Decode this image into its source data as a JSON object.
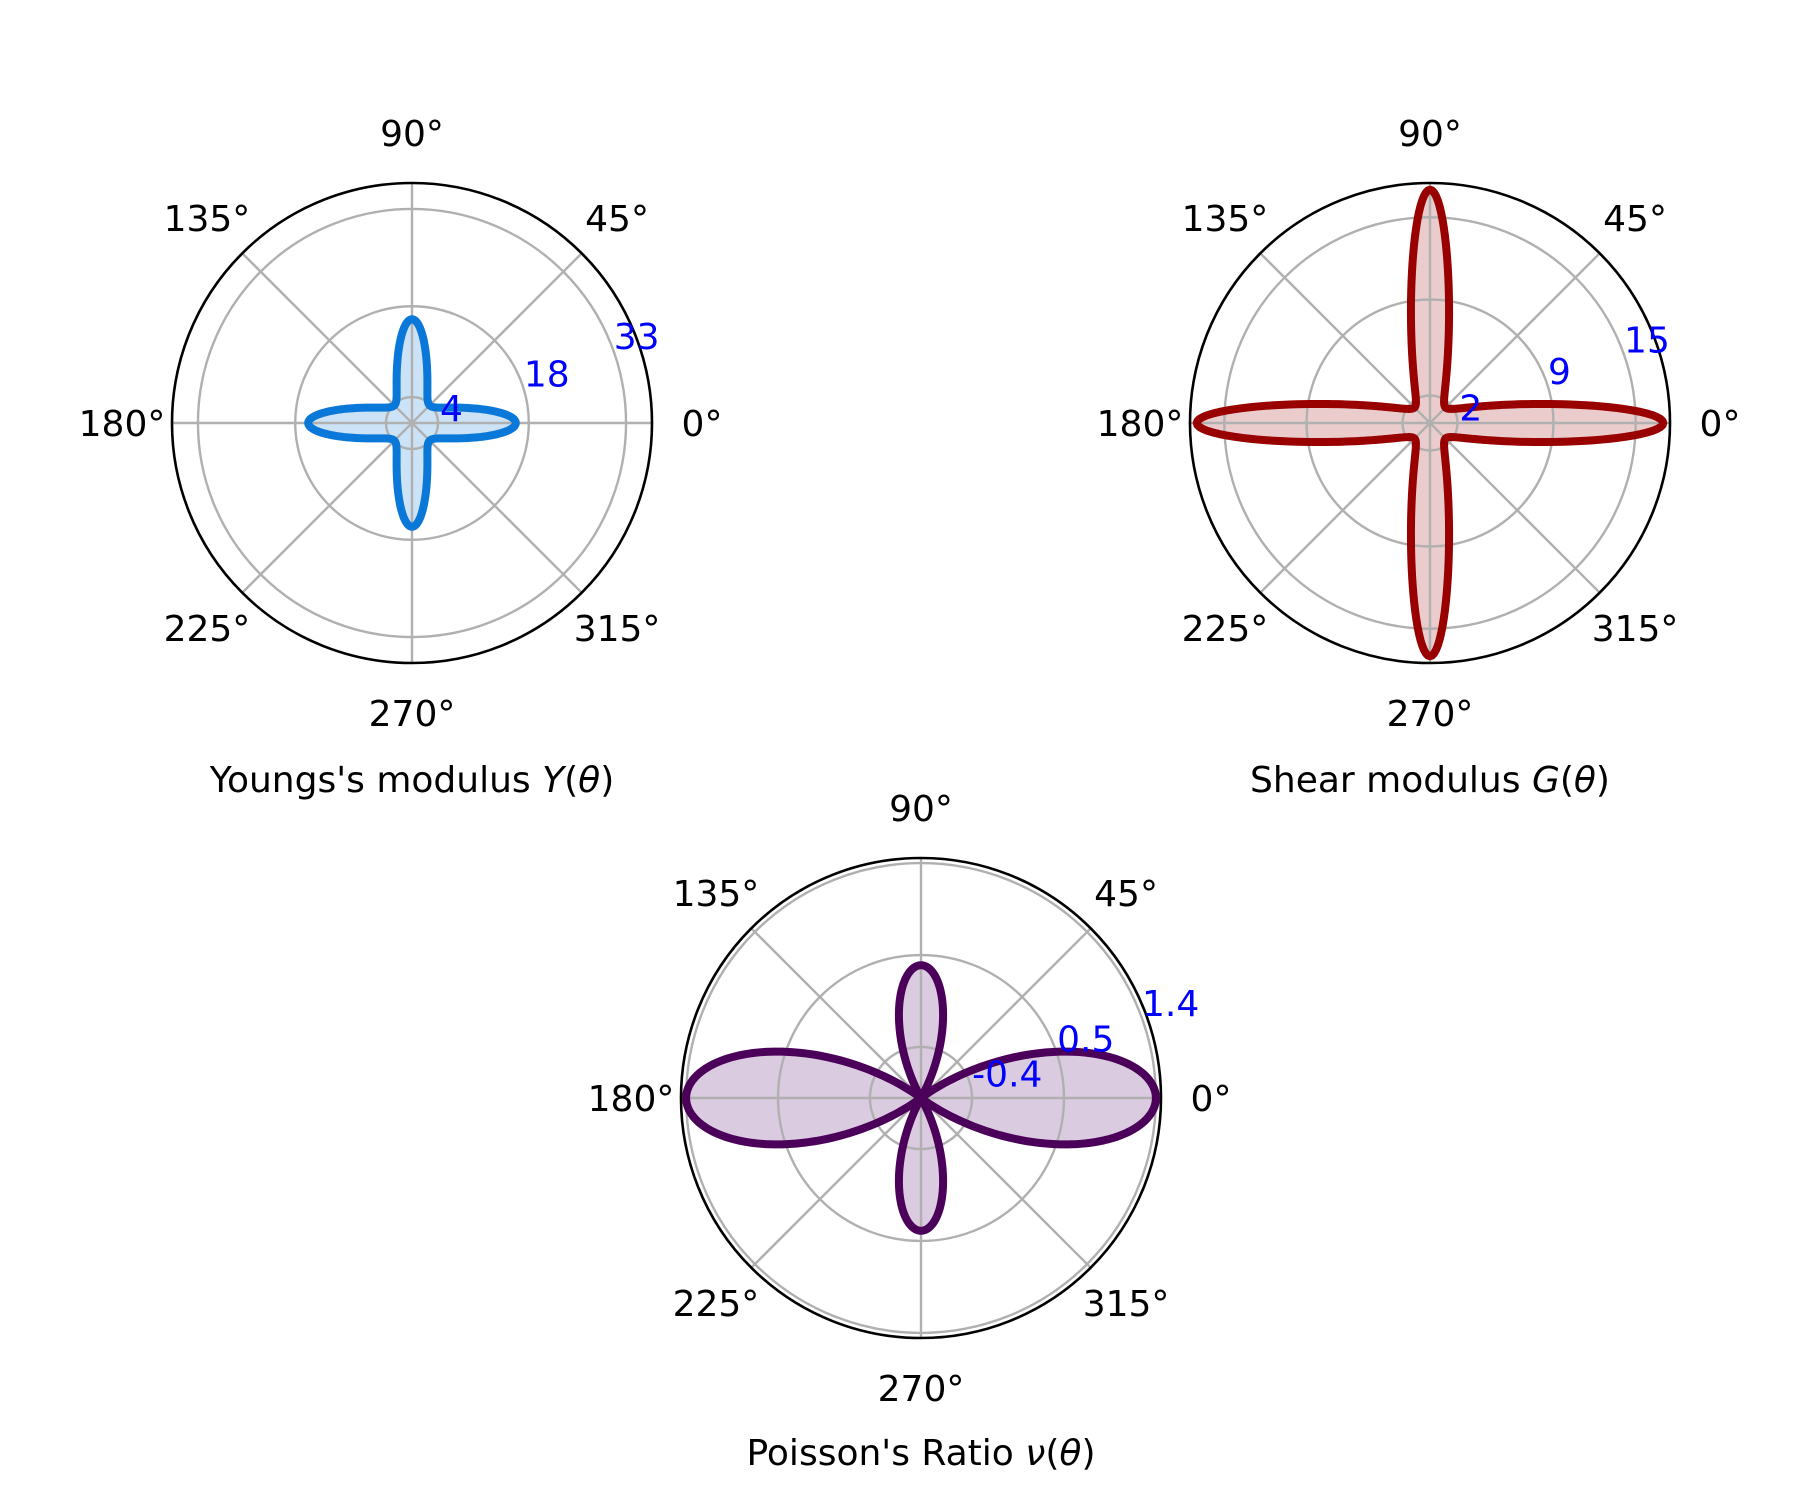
{
  "figure": {
    "angle_tick_labels": [
      "0°",
      "45°",
      "90°",
      "135°",
      "180°",
      "225°",
      "270°",
      "315°"
    ],
    "radial_tick_color": "#0000ff",
    "grid_color": "#b0b0b0"
  },
  "chart_data": [
    {
      "type": "polar-area",
      "title_parts": [
        "Youngs's modulus ",
        "Y",
        "(",
        "θ",
        ")"
      ],
      "quantity": "Young's modulus Y(θ)",
      "angle_ticks_deg": [
        0,
        45,
        90,
        135,
        180,
        225,
        270,
        315
      ],
      "angle_tick_labels": [
        "0°",
        "45°",
        "90°",
        "135°",
        "180°",
        "225°",
        "270°",
        "315°"
      ],
      "r_ticks": [
        4,
        18,
        33
      ],
      "r_tick_labels": [
        "4",
        "18",
        "33"
      ],
      "rlim": [
        0,
        37
      ],
      "r_tick_angle_deg": 22.5,
      "line_color": "#0a78d8",
      "fill_color": "#cce2f7",
      "model": {
        "form": "1/r = a + b*sin^2(2θ)",
        "a": 0.0625,
        "b": 0.1975
      },
      "series": [
        {
          "theta_deg": [
            0,
            15,
            30,
            45,
            60,
            75,
            90,
            105,
            120,
            135,
            150,
            165,
            180,
            195,
            210,
            225,
            240,
            255,
            270,
            285,
            300,
            315,
            330,
            345
          ],
          "r": [
            16.0,
            8.23,
            4.21,
            3.85,
            4.21,
            8.23,
            16.0,
            8.23,
            4.21,
            3.85,
            4.21,
            8.23,
            16.0,
            8.23,
            4.21,
            3.85,
            4.21,
            8.23,
            16.0,
            8.23,
            4.21,
            3.85,
            4.21,
            8.23
          ]
        }
      ]
    },
    {
      "type": "polar-area",
      "title_parts": [
        "Shear modulus ",
        "G",
        "(",
        "θ",
        ")"
      ],
      "quantity": "Shear modulus G(θ)",
      "angle_ticks_deg": [
        0,
        45,
        90,
        135,
        180,
        225,
        270,
        315
      ],
      "angle_tick_labels": [
        "0°",
        "45°",
        "90°",
        "135°",
        "180°",
        "225°",
        "270°",
        "315°"
      ],
      "r_ticks": [
        2,
        9,
        15
      ],
      "r_tick_labels": [
        "2",
        "9",
        "15"
      ],
      "rlim": [
        0,
        17.5
      ],
      "r_tick_angle_deg": 22.5,
      "line_color": "#990000",
      "fill_color": "#ebcccc",
      "model": {
        "form": "1/r = a + b*sin^2(2θ)",
        "a": 0.0588,
        "b": 0.5662
      },
      "series": [
        {
          "theta_deg": [
            0,
            15,
            30,
            45,
            60,
            75,
            90,
            105,
            120,
            135,
            150,
            165,
            180,
            195,
            210,
            225,
            240,
            255,
            270,
            285,
            300,
            315,
            330,
            345
          ],
          "r": [
            17.0,
            4.54,
            2.04,
            1.6,
            2.04,
            4.54,
            17.0,
            4.54,
            2.04,
            1.6,
            2.04,
            4.54,
            17.0,
            4.54,
            2.04,
            1.6,
            2.04,
            4.54,
            17.0,
            4.54,
            2.04,
            1.6,
            2.04,
            4.54
          ]
        }
      ]
    },
    {
      "type": "polar-area",
      "title_parts": [
        "Poisson's Ratio ",
        "ν",
        "(",
        "θ",
        ")"
      ],
      "quantity": "Poisson's Ratio ν(θ)",
      "angle_ticks_deg": [
        0,
        45,
        90,
        135,
        180,
        225,
        270,
        315
      ],
      "angle_tick_labels": [
        "0°",
        "45°",
        "90°",
        "135°",
        "180°",
        "225°",
        "270°",
        "315°"
      ],
      "r_ticks": [
        -0.4,
        0.5,
        1.4
      ],
      "r_tick_labels": [
        "-0.4",
        "0.5",
        "1.4"
      ],
      "rlim": [
        -0.9,
        1.45
      ],
      "r_tick_angle_deg": 22.5,
      "line_color": "#4b0059",
      "fill_color": "#dacbe0",
      "model": {
        "form": "r = c0 + c1*cos(2θ) + c2*cos(4θ)",
        "c0": -0.1625,
        "c1": 0.5,
        "c2": 1.0625
      },
      "series": [
        {
          "theta_deg": [
            0,
            15,
            30,
            45,
            60,
            75,
            90,
            105,
            120,
            135,
            150,
            165,
            180,
            195,
            210,
            225,
            240,
            255,
            270,
            285,
            300,
            315,
            330,
            345
          ],
          "r": [
            1.4,
            0.8,
            -0.44,
            -0.16,
            -0.94,
            -0.19,
            0.4,
            -0.19,
            -0.94,
            -0.16,
            -0.44,
            0.8,
            1.4,
            0.8,
            -0.44,
            -0.16,
            -0.94,
            -0.19,
            0.4,
            -0.19,
            -0.94,
            -0.16,
            -0.44,
            0.8
          ]
        }
      ]
    }
  ]
}
